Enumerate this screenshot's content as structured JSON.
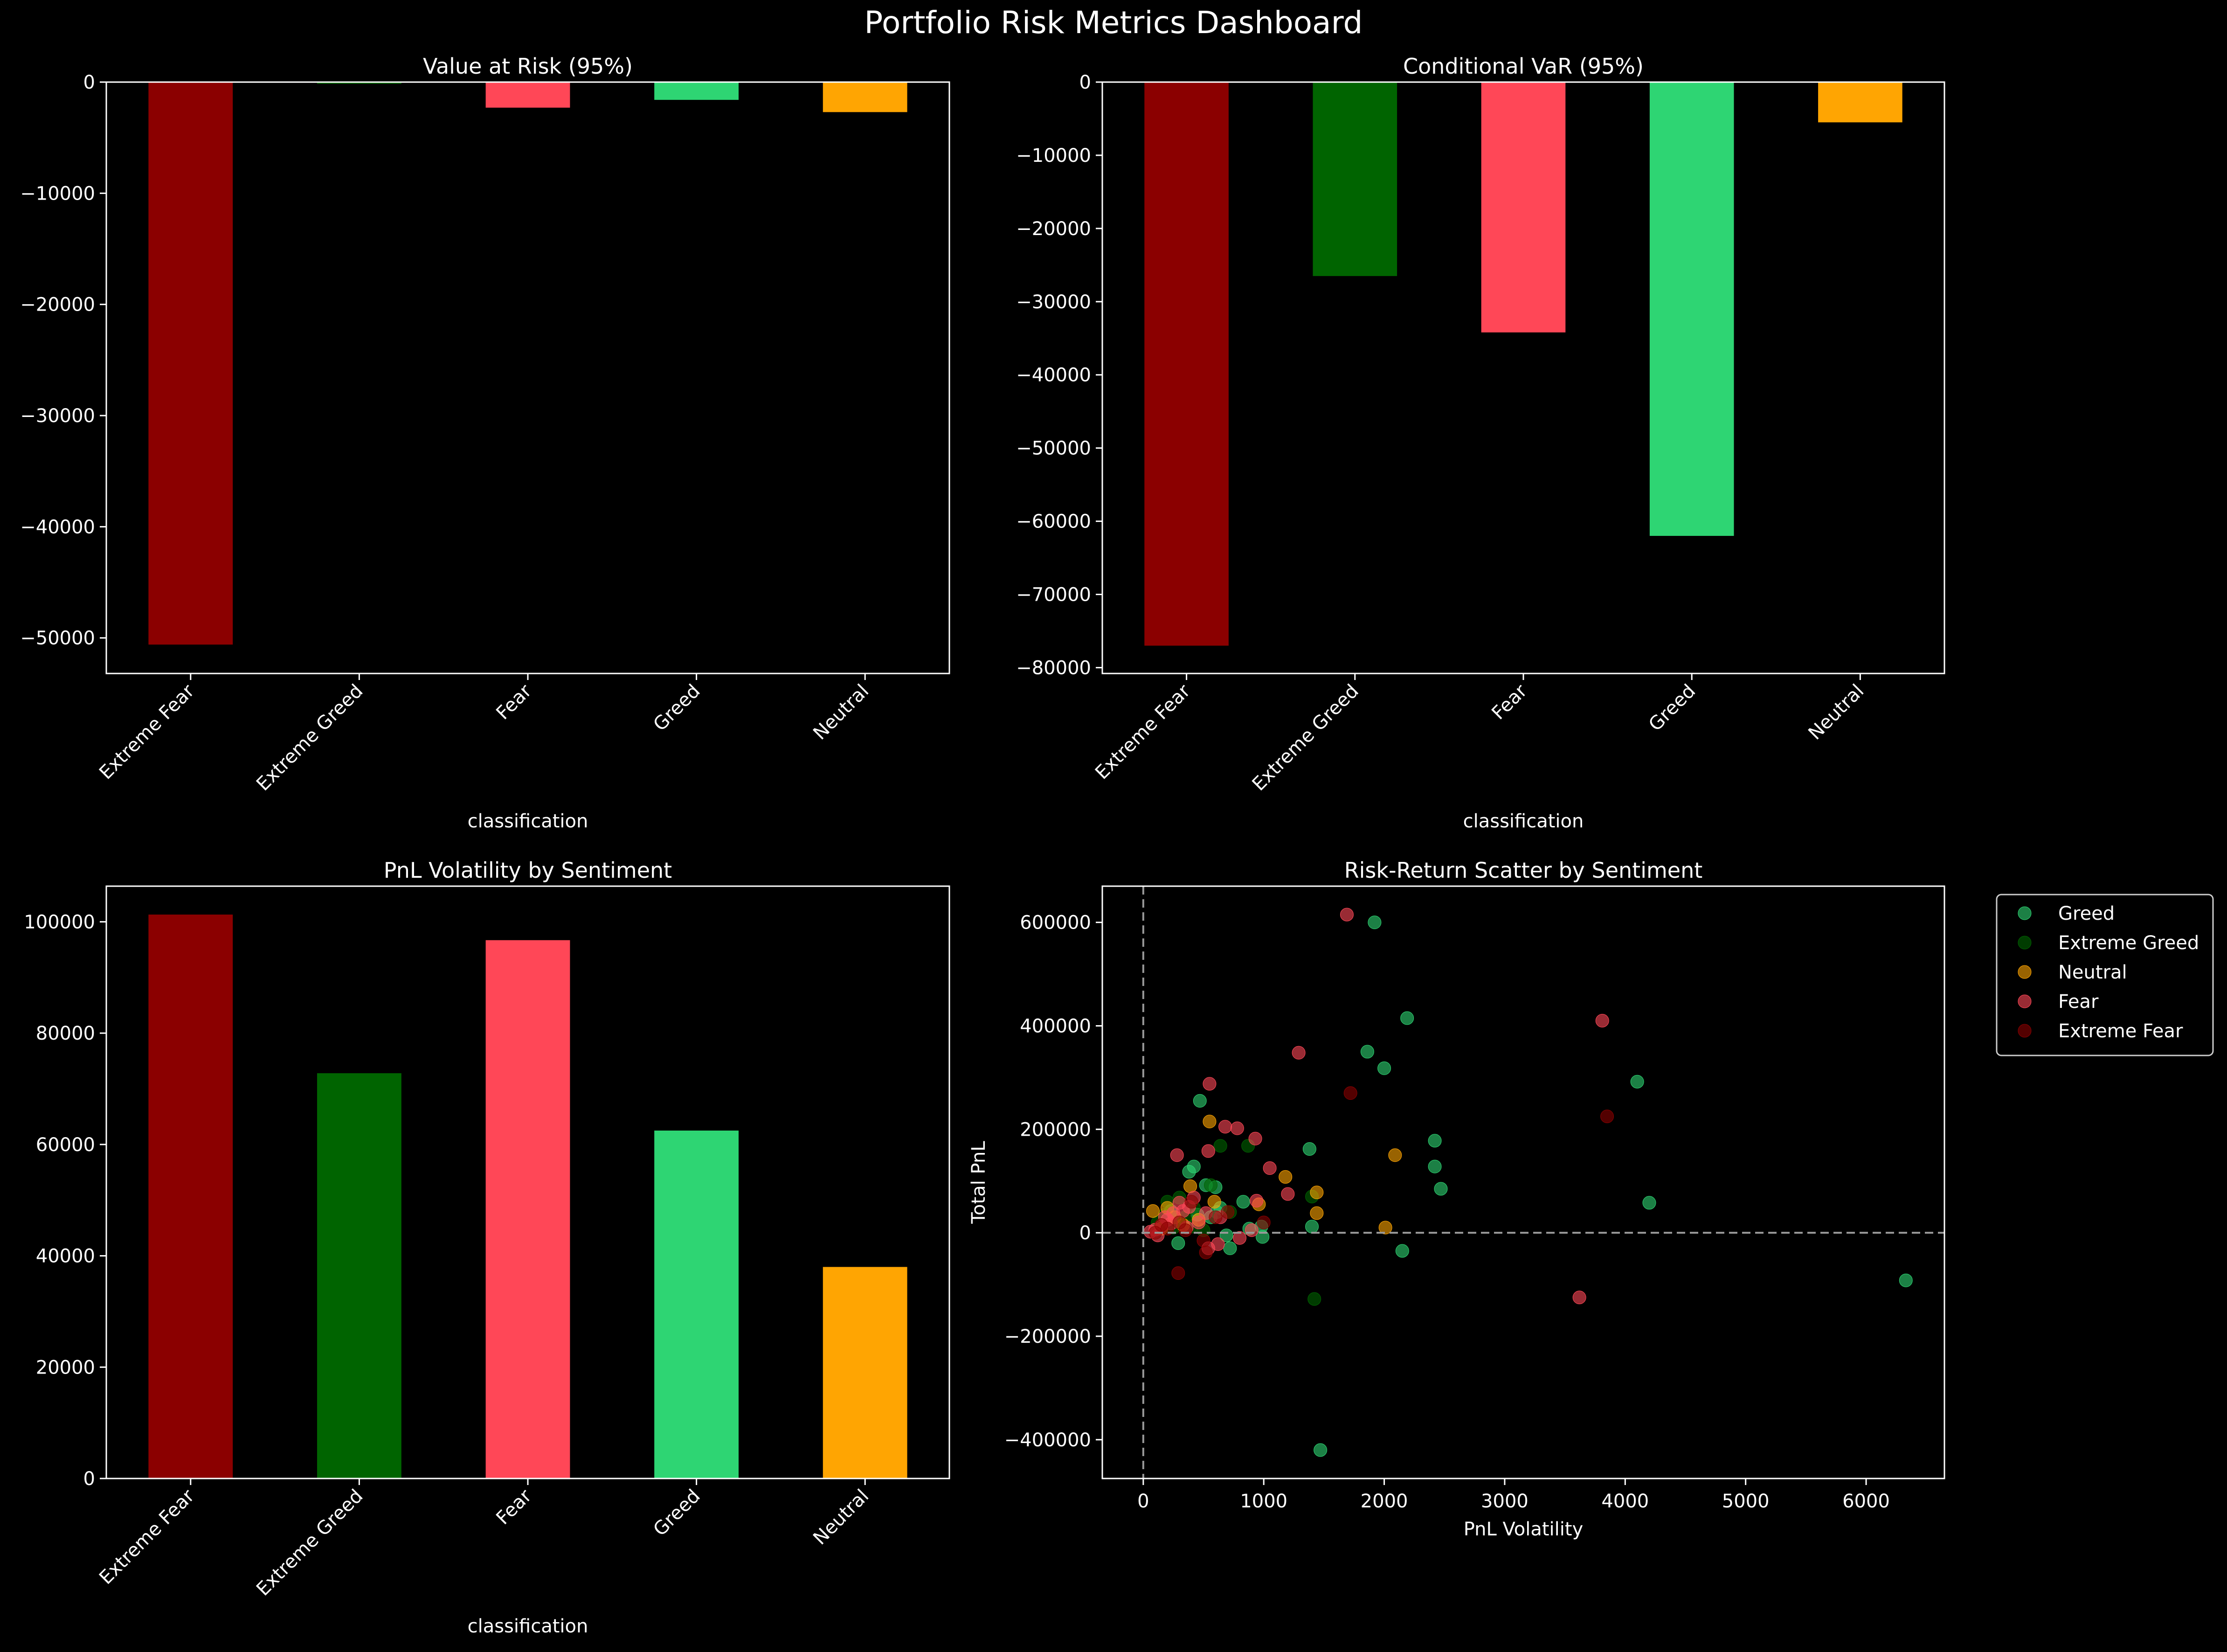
{
  "suptitle": "Portfolio Risk Metrics Dashboard",
  "colors": {
    "Extreme Fear": "#8b0000",
    "Extreme Greed": "#006400",
    "Fear": "#ff4757",
    "Greed": "#2ed573",
    "Neutral": "#ffa502",
    "background": "#000000",
    "foreground": "#ffffff"
  },
  "chart_data": [
    {
      "id": "var",
      "type": "bar",
      "title": "Value at Risk (95%)",
      "xlabel": "classification",
      "ylabel": "",
      "categories": [
        "Extreme Fear",
        "Extreme Greed",
        "Fear",
        "Greed",
        "Neutral"
      ],
      "values": [
        -50600,
        -150,
        -2300,
        -1600,
        -2700
      ],
      "ylim": [
        -53200,
        0
      ],
      "yticks": [
        0,
        -10000,
        -20000,
        -30000,
        -40000,
        -50000
      ],
      "zero_line": true
    },
    {
      "id": "cvar",
      "type": "bar",
      "title": "Conditional VaR (95%)",
      "xlabel": "classification",
      "ylabel": "",
      "categories": [
        "Extreme Fear",
        "Extreme Greed",
        "Fear",
        "Greed",
        "Neutral"
      ],
      "values": [
        -77000,
        -26500,
        -34200,
        -62000,
        -5500
      ],
      "ylim": [
        -80800,
        0
      ],
      "yticks": [
        0,
        -10000,
        -20000,
        -30000,
        -40000,
        -50000,
        -60000,
        -70000,
        -80000
      ],
      "zero_line": true
    },
    {
      "id": "vol",
      "type": "bar",
      "title": "PnL Volatility by Sentiment",
      "xlabel": "classification",
      "ylabel": "",
      "categories": [
        "Extreme Fear",
        "Extreme Greed",
        "Fear",
        "Greed",
        "Neutral"
      ],
      "values": [
        101300,
        72800,
        96700,
        62500,
        38000
      ],
      "ylim": [
        0,
        106400
      ],
      "yticks": [
        0,
        20000,
        40000,
        60000,
        80000,
        100000
      ]
    },
    {
      "id": "scatter",
      "type": "scatter",
      "title": "Risk-Return Scatter by Sentiment",
      "xlabel": "PnL Volatility",
      "ylabel": "Total PnL",
      "xlim": [
        -340,
        6650
      ],
      "ylim": [
        -475000,
        670000
      ],
      "xticks": [
        0,
        1000,
        2000,
        3000,
        4000,
        5000,
        6000
      ],
      "yticks": [
        -400000,
        -200000,
        0,
        200000,
        400000,
        600000
      ],
      "reference_lines": {
        "x": 0,
        "y": 0
      },
      "legend_position": "outside-right",
      "series": [
        {
          "name": "Greed",
          "points": [
            [
              1920,
              600000
            ],
            [
              2190,
              415000
            ],
            [
              1860,
              350000
            ],
            [
              2000,
              318000
            ],
            [
              4100,
              292000
            ],
            [
              470,
              255000
            ],
            [
              2420,
              178000
            ],
            [
              1380,
              162000
            ],
            [
              4200,
              58000
            ],
            [
              2470,
              85000
            ],
            [
              2420,
              128000
            ],
            [
              2150,
              -35000
            ],
            [
              1470,
              -420000
            ],
            [
              6330,
              -92000
            ],
            [
              520,
              92000
            ],
            [
              380,
              118000
            ],
            [
              420,
              128000
            ],
            [
              600,
              88000
            ],
            [
              640,
              48000
            ],
            [
              690,
              -5000
            ],
            [
              980,
              12000
            ],
            [
              720,
              -30000
            ],
            [
              830,
              60000
            ],
            [
              290,
              -20000
            ],
            [
              230,
              42000
            ],
            [
              1400,
              12000
            ],
            [
              990,
              -8000
            ],
            [
              880,
              8000
            ],
            [
              300,
              20000
            ],
            [
              560,
              30000
            ],
            [
              450,
              35000
            ],
            [
              610,
              40000
            ]
          ]
        },
        {
          "name": "Extreme Greed",
          "points": [
            [
              870,
              168000
            ],
            [
              640,
              168000
            ],
            [
              1420,
              -128000
            ],
            [
              560,
              92000
            ],
            [
              300,
              68000
            ],
            [
              200,
              60000
            ],
            [
              350,
              30000
            ],
            [
              420,
              48000
            ],
            [
              250,
              10000
            ],
            [
              720,
              40000
            ],
            [
              120,
              20000
            ],
            [
              400,
              12000
            ],
            [
              180,
              35000
            ],
            [
              500,
              5000
            ],
            [
              1400,
              70000
            ]
          ]
        },
        {
          "name": "Neutral",
          "points": [
            [
              550,
              215000
            ],
            [
              2090,
              150000
            ],
            [
              1180,
              108000
            ],
            [
              1440,
              78000
            ],
            [
              2010,
              10000
            ],
            [
              960,
              55000
            ],
            [
              1440,
              38000
            ],
            [
              390,
              90000
            ],
            [
              200,
              48000
            ],
            [
              260,
              30000
            ],
            [
              330,
              15000
            ],
            [
              460,
              25000
            ],
            [
              80,
              42000
            ],
            [
              150,
              8000
            ],
            [
              590,
              60000
            ]
          ]
        },
        {
          "name": "Fear",
          "points": [
            [
              1690,
              615000
            ],
            [
              3810,
              410000
            ],
            [
              1290,
              348000
            ],
            [
              550,
              288000
            ],
            [
              680,
              205000
            ],
            [
              780,
              202000
            ],
            [
              930,
              182000
            ],
            [
              540,
              158000
            ],
            [
              280,
              150000
            ],
            [
              1050,
              125000
            ],
            [
              1200,
              75000
            ],
            [
              940,
              62000
            ],
            [
              420,
              68000
            ],
            [
              380,
              50000
            ],
            [
              300,
              58000
            ],
            [
              250,
              38000
            ],
            [
              200,
              25000
            ],
            [
              150,
              12000
            ],
            [
              100,
              6000
            ],
            [
              60,
              2000
            ],
            [
              120,
              -5000
            ],
            [
              360,
              10000
            ],
            [
              460,
              20000
            ],
            [
              520,
              38000
            ],
            [
              640,
              30000
            ],
            [
              800,
              -10000
            ],
            [
              900,
              5000
            ],
            [
              3620,
              -125000
            ],
            [
              540,
              -30000
            ],
            [
              620,
              -22000
            ],
            [
              330,
              42000
            ],
            [
              230,
              18000
            ],
            [
              180,
              30000
            ]
          ]
        },
        {
          "name": "Extreme Fear",
          "points": [
            [
              1720,
              270000
            ],
            [
              3850,
              225000
            ],
            [
              290,
              -78000
            ],
            [
              520,
              -38000
            ],
            [
              400,
              60000
            ],
            [
              600,
              30000
            ],
            [
              300,
              20000
            ],
            [
              200,
              8000
            ],
            [
              500,
              -15000
            ],
            [
              700,
              40000
            ],
            [
              150,
              15000
            ],
            [
              350,
              5000
            ],
            [
              1000,
              20000
            ],
            [
              100,
              0
            ]
          ]
        }
      ]
    }
  ]
}
